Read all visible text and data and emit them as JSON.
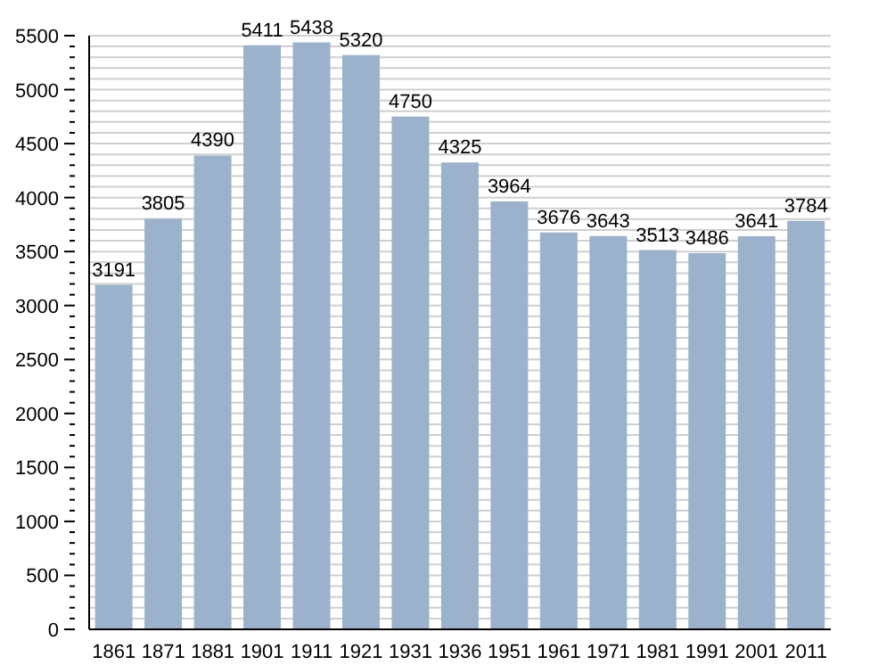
{
  "chart_data": {
    "type": "bar",
    "categories": [
      "1861",
      "1871",
      "1881",
      "1901",
      "1911",
      "1921",
      "1931",
      "1936",
      "1951",
      "1961",
      "1971",
      "1981",
      "1991",
      "2001",
      "2011"
    ],
    "values": [
      3191,
      3805,
      4390,
      5411,
      5438,
      5320,
      4750,
      4325,
      3964,
      3676,
      3643,
      3513,
      3486,
      3641,
      3784
    ],
    "color": "#9cb1cc",
    "data_labels": true,
    "grid": "y",
    "ylim": [
      0,
      5500
    ],
    "yticks": [
      0,
      {
        "value": 100,
        "label": null
      },
      {
        "value": 200,
        "label": null
      },
      {
        "value": 300,
        "label": null
      },
      {
        "value": 400,
        "label": null
      },
      500,
      {
        "value": 600,
        "label": null
      },
      {
        "value": 700,
        "label": null
      },
      {
        "value": 800,
        "label": null
      },
      {
        "value": 900,
        "label": null
      },
      1000,
      {
        "value": 1100,
        "label": null
      },
      {
        "value": 1200,
        "label": null
      },
      {
        "value": 1300,
        "label": null
      },
      {
        "value": 1400,
        "label": null
      },
      1500,
      {
        "value": 1600,
        "label": null
      },
      {
        "value": 1700,
        "label": null
      },
      {
        "value": 1800,
        "label": null
      },
      {
        "value": 1900,
        "label": null
      },
      2000,
      {
        "value": 2100,
        "label": null
      },
      {
        "value": 2200,
        "label": null
      },
      {
        "value": 2300,
        "label": null
      },
      {
        "value": 2400,
        "label": null
      },
      2500,
      {
        "value": 2600,
        "label": null
      },
      {
        "value": 2700,
        "label": null
      },
      {
        "value": 2800,
        "label": null
      },
      {
        "value": 2900,
        "label": null
      },
      3000,
      {
        "value": 3100,
        "label": null
      },
      {
        "value": 3200,
        "label": null
      },
      {
        "value": 3300,
        "label": null
      },
      {
        "value": 3400,
        "label": null
      },
      3500,
      {
        "value": 3600,
        "label": null
      },
      {
        "value": 3700,
        "label": null
      },
      {
        "value": 3800,
        "label": null
      },
      {
        "value": 3900,
        "label": null
      },
      4000,
      {
        "value": 4100,
        "label": null
      },
      {
        "value": 4200,
        "label": null
      },
      {
        "value": 4300,
        "label": null
      },
      {
        "value": 4400,
        "label": null
      },
      4500,
      {
        "value": 4600,
        "label": null
      },
      {
        "value": 4700,
        "label": null
      },
      {
        "value": 4800,
        "label": null
      },
      {
        "value": 4900,
        "label": null
      },
      5000,
      {
        "value": 5100,
        "label": null
      },
      {
        "value": 5200,
        "label": null
      },
      {
        "value": 5300,
        "label": null
      },
      {
        "value": 5400,
        "label": null
      },
      5500
    ]
  }
}
